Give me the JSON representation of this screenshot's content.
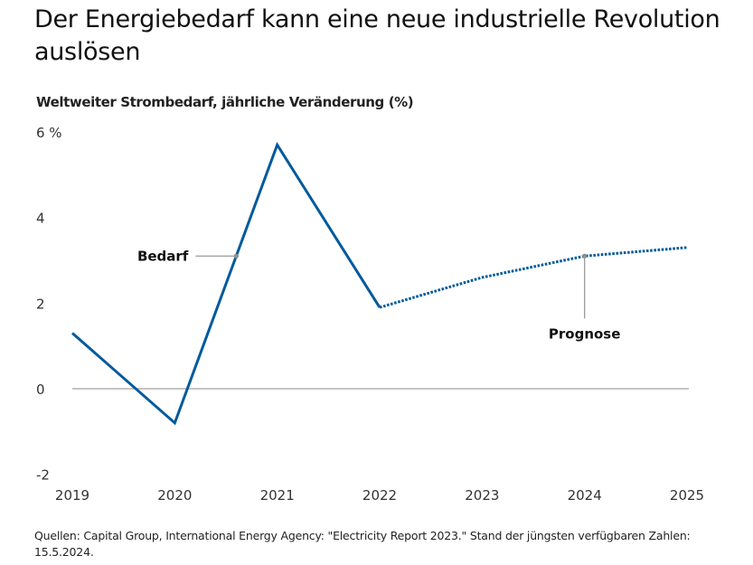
{
  "header": {
    "title": "Der Energiebedarf kann eine neue industrielle Revolution auslösen",
    "subtitle": "Weltweiter Strombedarf, jährliche Veränderung (%)"
  },
  "footer": {
    "source": "Quellen: Capital Group, International Energy Agency: \"Electricity Report 2023.\" Stand der jüngsten verfügbaren Zahlen: 15.5.2024."
  },
  "chart_data": {
    "type": "line",
    "title": "Weltweiter Strombedarf, jährliche Veränderung (%)",
    "xlabel": "",
    "ylabel": "",
    "x": [
      "2019",
      "2020",
      "2021",
      "2022",
      "2023",
      "2024",
      "2025"
    ],
    "series": [
      {
        "name": "Bedarf",
        "style": "solid",
        "color": "#005A9C",
        "x": [
          "2019",
          "2020",
          "2021",
          "2022"
        ],
        "values": [
          1.3,
          -0.8,
          5.7,
          1.9
        ]
      },
      {
        "name": "Prognose",
        "style": "dotted",
        "color": "#005A9C",
        "x": [
          "2022",
          "2023",
          "2024",
          "2025"
        ],
        "values": [
          1.9,
          2.6,
          3.1,
          3.3
        ]
      }
    ],
    "ylim": [
      -2,
      6
    ],
    "yticks": [
      -2,
      0,
      2,
      4,
      6
    ],
    "ytick_labels": [
      "-2",
      "0",
      "2",
      "4",
      "6 %"
    ],
    "grid": false,
    "zero_line": true,
    "annotations": [
      {
        "text": "Bedarf",
        "target_series": "Bedarf",
        "at_x": 2020.6,
        "placement": "left"
      },
      {
        "text": "Prognose",
        "target_series": "Prognose",
        "at_x": "2024",
        "placement": "below"
      }
    ],
    "legend": "none"
  }
}
